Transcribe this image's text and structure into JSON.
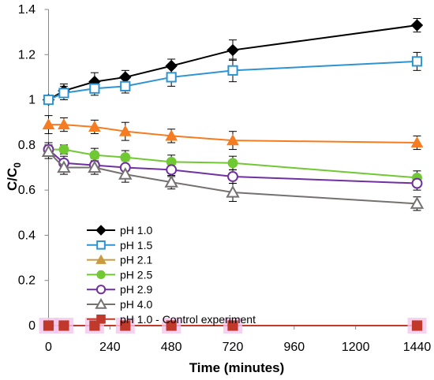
{
  "chart_data": {
    "type": "line",
    "title": "",
    "xlabel": "Time (minutes)",
    "ylabel_main": "C/C",
    "ylabel_sub": "0",
    "xlim": [
      -20,
      1460
    ],
    "ylim": [
      0,
      1.4
    ],
    "x_ticks": [
      0,
      240,
      480,
      720,
      960,
      1200,
      1440
    ],
    "x_tick_labels": [
      "0",
      "240",
      "480",
      "720",
      "960",
      "1200",
      "1440"
    ],
    "y_ticks": [
      0,
      0.2,
      0.4,
      0.6,
      0.8,
      1.0,
      1.2,
      1.4
    ],
    "y_tick_labels": [
      "0",
      "0.2",
      "0.4",
      "0.6",
      "0.8",
      "1",
      "1.2",
      "1.4"
    ],
    "grid": false,
    "legend_position": "lower-left inside plot",
    "series": [
      {
        "name": "pH 1.0",
        "color": "#000000",
        "marker": "diamond",
        "marker_fill": "#000000",
        "x": [
          0,
          60,
          180,
          300,
          480,
          720,
          1440
        ],
        "y": [
          1.0,
          1.04,
          1.08,
          1.1,
          1.15,
          1.22,
          1.33
        ],
        "err": [
          0.02,
          0.03,
          0.04,
          0.03,
          0.03,
          0.045,
          0.03
        ]
      },
      {
        "name": "pH 1.5",
        "color": "#2e93d1",
        "marker": "square-open",
        "marker_fill": "#ffffff",
        "x": [
          0,
          60,
          180,
          300,
          480,
          720,
          1440
        ],
        "y": [
          1.0,
          1.03,
          1.05,
          1.06,
          1.1,
          1.13,
          1.17
        ],
        "err": [
          0.02,
          0.03,
          0.03,
          0.03,
          0.04,
          0.05,
          0.04
        ]
      },
      {
        "name": "pH 2.1",
        "color": "#f57c20",
        "marker": "triangle",
        "marker_fill": "#f57c20",
        "legend_color": "#c89b3c",
        "x": [
          0,
          60,
          180,
          300,
          480,
          720,
          1440
        ],
        "y": [
          0.89,
          0.89,
          0.88,
          0.86,
          0.84,
          0.82,
          0.81
        ],
        "err": [
          0.04,
          0.03,
          0.03,
          0.04,
          0.03,
          0.04,
          0.03
        ]
      },
      {
        "name": "pH 2.5",
        "color": "#70c832",
        "marker": "circle",
        "marker_fill": "#70c832",
        "x": [
          0,
          60,
          180,
          300,
          480,
          720,
          1440
        ],
        "y": [
          0.78,
          0.78,
          0.755,
          0.745,
          0.725,
          0.72,
          0.655
        ],
        "err": [
          0.03,
          0.02,
          0.03,
          0.03,
          0.03,
          0.03,
          0.03
        ]
      },
      {
        "name": "pH 2.9",
        "color": "#7030a0",
        "marker": "circle-open",
        "marker_fill": "#ffffff",
        "x": [
          0,
          60,
          180,
          300,
          480,
          720,
          1440
        ],
        "y": [
          0.78,
          0.72,
          0.71,
          0.7,
          0.69,
          0.66,
          0.63
        ],
        "err": [
          0.03,
          0.03,
          0.03,
          0.03,
          0.03,
          0.03,
          0.03
        ]
      },
      {
        "name": "pH 4.0",
        "color": "#767171",
        "marker": "triangle-open",
        "marker_fill": "#ffffff",
        "x": [
          0,
          60,
          180,
          300,
          480,
          720,
          1440
        ],
        "y": [
          0.77,
          0.7,
          0.7,
          0.67,
          0.635,
          0.59,
          0.54
        ],
        "err": [
          0.03,
          0.03,
          0.03,
          0.035,
          0.03,
          0.04,
          0.03
        ]
      },
      {
        "name": "pH 1.0  - Control experiment",
        "color": "#c0392b",
        "marker": "square",
        "marker_fill": "#c0392b",
        "x": [
          0,
          60,
          180,
          300,
          480,
          720,
          1440
        ],
        "y": [
          0,
          0,
          0,
          0,
          0,
          0,
          0
        ],
        "err": [
          0,
          0,
          0,
          0,
          0,
          0,
          0
        ]
      }
    ]
  }
}
